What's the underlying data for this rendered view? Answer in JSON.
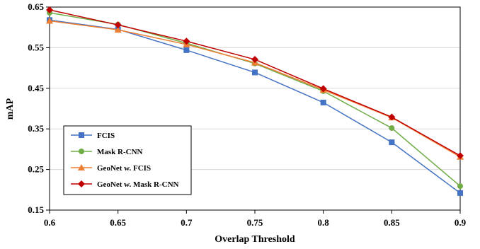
{
  "chart_data": {
    "type": "line",
    "title": "",
    "xlabel": "Overlap Threshold",
    "ylabel": "mAP",
    "x": [
      0.6,
      0.65,
      0.7,
      0.75,
      0.8,
      0.85,
      0.9
    ],
    "x_tick_labels": [
      "0.6",
      "0.65",
      "0.7",
      "0.75",
      "0.8",
      "0.85",
      "0.9"
    ],
    "y_tick_labels": [
      "0.15",
      "0.25",
      "0.35",
      "0.45",
      "0.55",
      "0.65"
    ],
    "xlim": [
      0.6,
      0.9
    ],
    "ylim": [
      0.15,
      0.65
    ],
    "y_ticks": [
      0.15,
      0.25,
      0.35,
      0.45,
      0.55,
      0.65
    ],
    "grid": "horizontal",
    "legend_position": "lower-left",
    "series": [
      {
        "name": "FCIS",
        "color": "#4472c4",
        "marker": "square",
        "values": [
          0.618,
          0.595,
          0.544,
          0.489,
          0.415,
          0.317,
          0.192
        ]
      },
      {
        "name": "Mask R-CNN",
        "color": "#70ad47",
        "marker": "circle",
        "values": [
          0.636,
          0.607,
          0.561,
          0.511,
          0.443,
          0.352,
          0.209
        ]
      },
      {
        "name": "GeoNet w. FCIS",
        "color": "#ed7d31",
        "marker": "triangle",
        "values": [
          0.616,
          0.594,
          0.558,
          0.513,
          0.446,
          0.378,
          0.281
        ]
      },
      {
        "name": "GeoNet w. Mask R-CNN",
        "color": "#c00000",
        "marker": "diamond",
        "values": [
          0.643,
          0.606,
          0.566,
          0.521,
          0.449,
          0.379,
          0.284
        ]
      }
    ]
  }
}
